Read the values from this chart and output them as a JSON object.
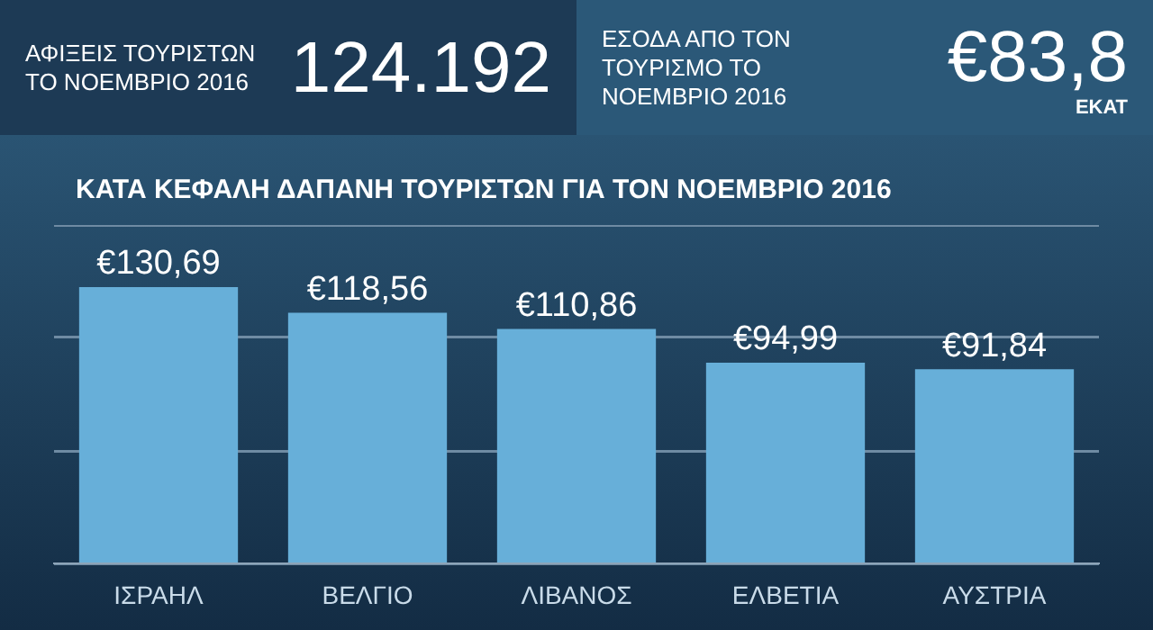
{
  "chart_data": [
    {
      "type": "other",
      "title": "ΑΦΙΞΕΙΣ ΤΟΥΡΙΣΤΩΝ ΤΟ ΝΟΕΜΒΡΙΟ 2016",
      "annotations": [
        "124.192"
      ]
    },
    {
      "type": "other",
      "title": "ΕΣΟΔΑ ΑΠΟ ΤΟΝ ΤΟΥΡΙΣΜΟ ΤΟ ΝΟΕΜΒΡΙΟ 2016",
      "annotations": [
        "€83,8",
        "ΕΚΑΤ"
      ]
    },
    {
      "type": "bar",
      "title": "ΚΑΤΑ ΚΕΦΑΛΗ ΔΑΠΑΝΗ ΤΟΥΡΙΣΤΩΝ ΓΙΑ ΤΟΝ ΝΟΕΜΒΡΙΟ 2016",
      "categories": [
        "ΙΣΡΑΗΛ",
        "ΒΕΛΓΙΟ",
        "ΛΙΒΑΝΟΣ",
        "ΕΛΒΕΤΙΑ",
        "ΑΥΣΤΡΙΑ"
      ],
      "values": [
        130.69,
        118.56,
        110.86,
        94.99,
        91.84
      ],
      "value_labels": [
        "€130,69",
        "€118,56",
        "€110,86",
        "€94,99",
        "€91,84"
      ],
      "color": "#67afd9",
      "ylim": [
        0,
        160
      ],
      "yticks": [
        {
          "value": 0,
          "label": null
        },
        {
          "value": 53,
          "label": null
        },
        {
          "value": 107,
          "label": null
        },
        {
          "value": 160,
          "label": null
        }
      ],
      "grid": "y",
      "tick_labels": "x",
      "legend": false
    }
  ]
}
